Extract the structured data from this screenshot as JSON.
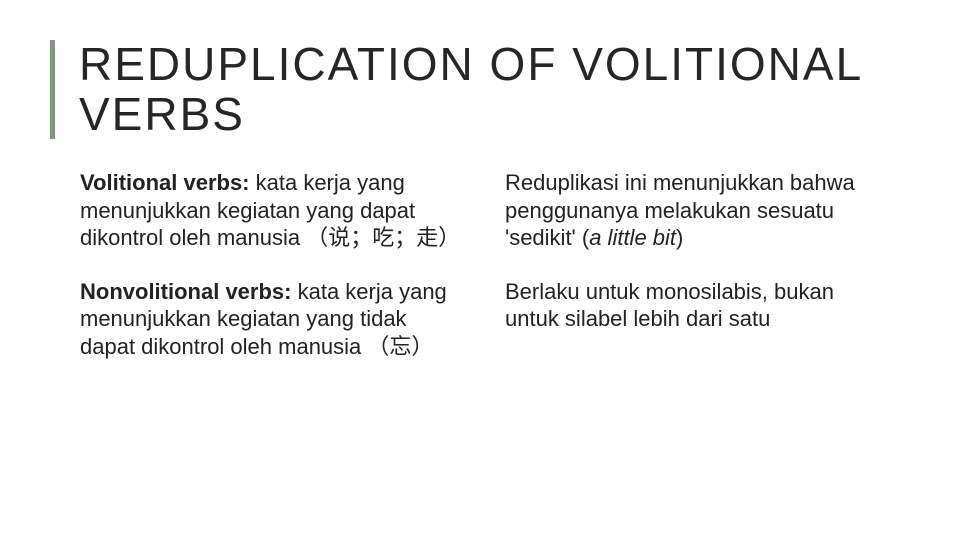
{
  "title": "REDUPLICATION OF VOLITIONAL VERBS",
  "left": {
    "p1": {
      "bold": "Volitional verbs:",
      "text": " kata kerja yang menunjukkan kegiatan yang dapat dikontrol oleh manusia （说；吃；走）"
    },
    "p2": {
      "bold": "Nonvolitional verbs:",
      "text": " kata kerja yang menunjukkan kegiatan yang tidak dapat dikontrol oleh manusia （忘）"
    }
  },
  "right": {
    "p1": {
      "pre": "Reduplikasi ini menunjukkan bahwa penggunanya melakukan sesuatu 'sedikit' (",
      "italic": "a little bit",
      "post": ")"
    },
    "p2": {
      "text": "Berlaku untuk monosilabis, bukan untuk silabel lebih dari satu"
    }
  },
  "colors": {
    "accent": "#7a9b76",
    "text": "#222222",
    "title": "#262626",
    "background": "#ffffff"
  },
  "typography": {
    "title_fontsize": 46,
    "title_letterspacing": 2,
    "body_fontsize": 22,
    "font_family": "Arial"
  }
}
